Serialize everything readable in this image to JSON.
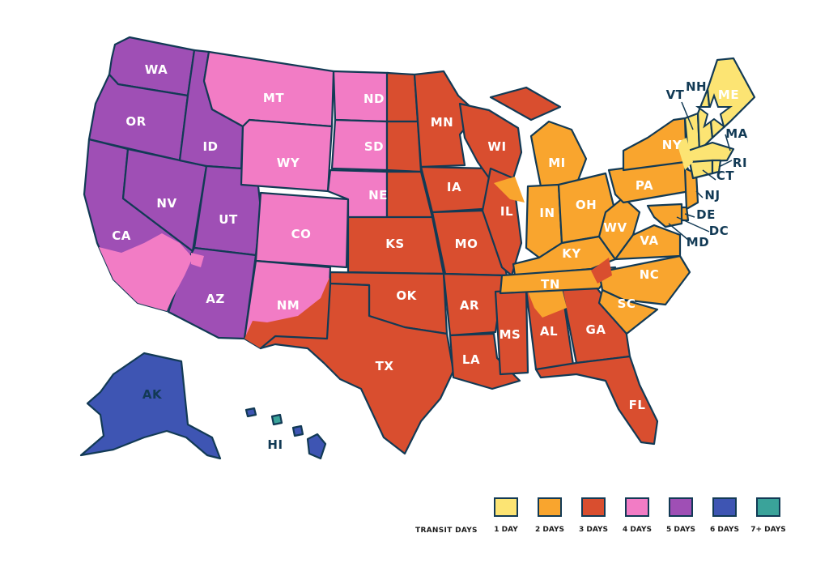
{
  "legend": {
    "title": "TRANSIT DAYS",
    "items": [
      {
        "label": "1 DAY",
        "color": "#fce473"
      },
      {
        "label": "2 DAYS",
        "color": "#f9a52e"
      },
      {
        "label": "3 DAYS",
        "color": "#d94e2f"
      },
      {
        "label": "4 DAYS",
        "color": "#f27cc5"
      },
      {
        "label": "5 DAYS",
        "color": "#9f4fb5"
      },
      {
        "label": "6 DAYS",
        "color": "#3e55b3"
      },
      {
        "label": "7+ DAYS",
        "color": "#3aa39a"
      }
    ]
  },
  "states": {
    "WA": "WA",
    "OR": "OR",
    "CA": "CA",
    "NV": "NV",
    "ID": "ID",
    "MT": "MT",
    "WY": "WY",
    "UT": "UT",
    "AZ": "AZ",
    "CO": "CO",
    "NM": "NM",
    "ND": "ND",
    "SD": "SD",
    "NE": "NE",
    "KS": "KS",
    "OK": "OK",
    "TX": "TX",
    "MN": "MN",
    "IA": "IA",
    "MO": "MO",
    "AR": "AR",
    "LA": "LA",
    "WI": "WI",
    "IL": "IL",
    "MS": "MS",
    "MI": "MI",
    "IN": "IN",
    "OH": "OH",
    "KY": "KY",
    "TN": "TN",
    "AL": "AL",
    "GA": "GA",
    "FL": "FL",
    "SC": "SC",
    "NC": "NC",
    "VA": "VA",
    "WV": "WV",
    "PA": "PA",
    "NY": "NY",
    "VT": "VT",
    "NH": "NH",
    "ME": "ME",
    "MA": "MA",
    "RI": "RI",
    "CT": "CT",
    "NJ": "NJ",
    "DE": "DE",
    "MD": "MD",
    "DC": "DC",
    "AK": "AK",
    "HI": "HI"
  },
  "origin_marker": "star-icon"
}
